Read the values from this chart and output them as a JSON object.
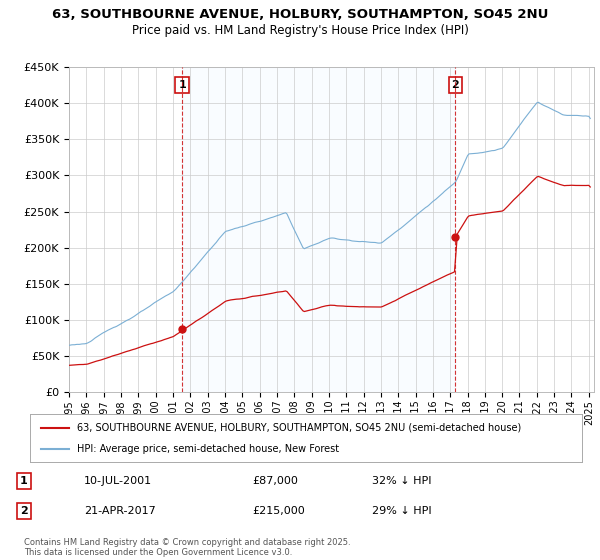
{
  "title": "63, SOUTHBOURNE AVENUE, HOLBURY, SOUTHAMPTON, SO45 2NU",
  "subtitle": "Price paid vs. HM Land Registry's House Price Index (HPI)",
  "legend_line1": "63, SOUTHBOURNE AVENUE, HOLBURY, SOUTHAMPTON, SO45 2NU (semi-detached house)",
  "legend_line2": "HPI: Average price, semi-detached house, New Forest",
  "annotation1_label": "1",
  "annotation1_date": "10-JUL-2001",
  "annotation1_price": "£87,000",
  "annotation1_hpi": "32% ↓ HPI",
  "annotation1_year": 2001.53,
  "annotation1_value": 87000,
  "annotation2_label": "2",
  "annotation2_date": "21-APR-2017",
  "annotation2_price": "£215,000",
  "annotation2_hpi": "29% ↓ HPI",
  "annotation2_year": 2017.3,
  "annotation2_value": 215000,
  "copyright": "Contains HM Land Registry data © Crown copyright and database right 2025.\nThis data is licensed under the Open Government Licence v3.0.",
  "ylim_min": 0,
  "ylim_max": 450000,
  "hpi_color": "#7bafd4",
  "price_color": "#cc1111",
  "annotation_box_color": "#cc1111",
  "shade_color": "#ddeeff",
  "background_color": "#ffffff",
  "grid_color": "#cccccc"
}
